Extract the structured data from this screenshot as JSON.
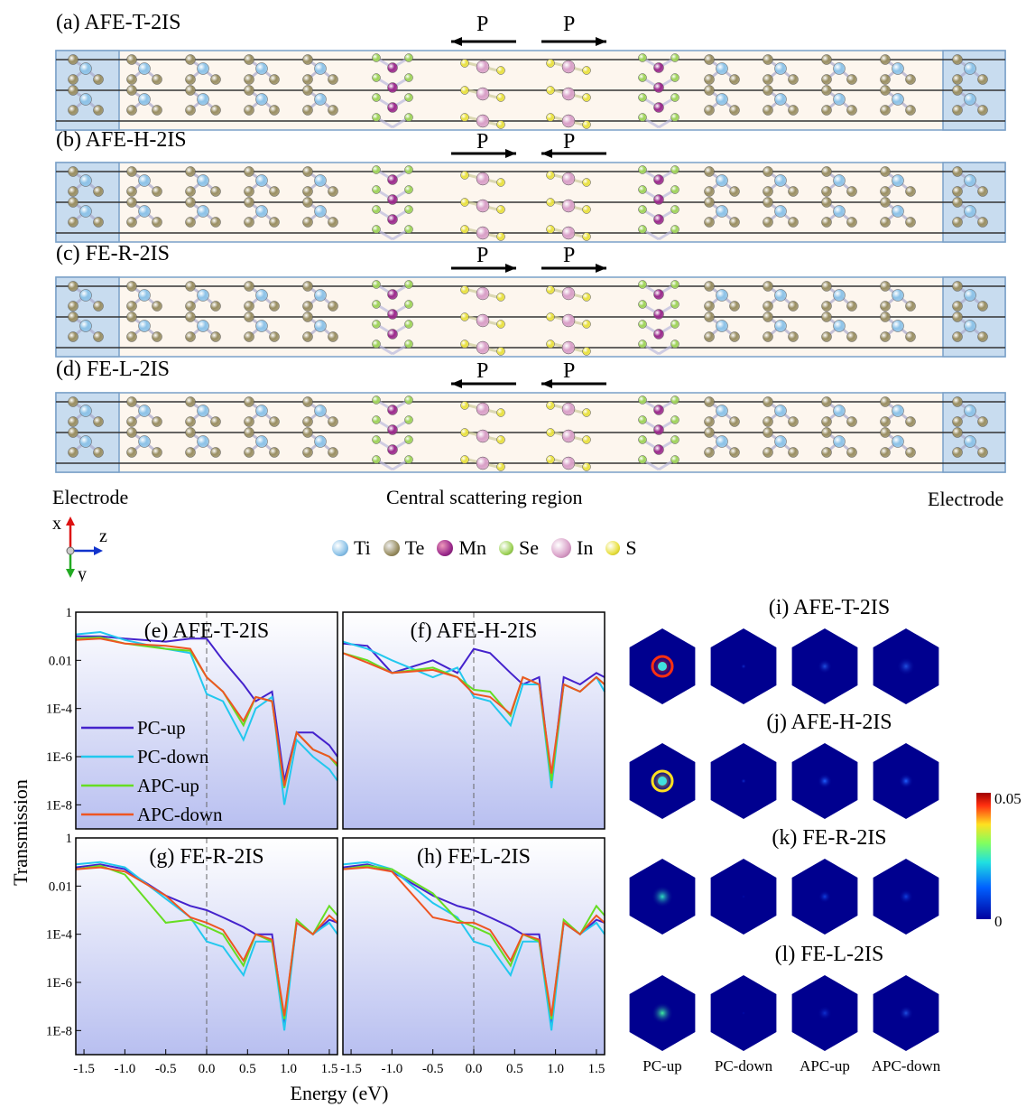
{
  "structure_panels": [
    {
      "label": "(a) AFE-T-2IS",
      "p_left": "P",
      "p_right": "P",
      "arrow_left": "left",
      "arrow_right": "right"
    },
    {
      "label": "(b) AFE-H-2IS",
      "p_left": "P",
      "p_right": "P",
      "arrow_left": "right",
      "arrow_right": "left"
    },
    {
      "label": "(c) FE-R-2IS",
      "p_left": "P",
      "p_right": "P",
      "arrow_left": "right",
      "arrow_right": "right"
    },
    {
      "label": "(d) FE-L-2IS",
      "p_left": "P",
      "p_right": "P",
      "arrow_left": "left",
      "arrow_right": "left"
    }
  ],
  "region_labels": {
    "left": "Electrode",
    "center": "Central scattering region",
    "right": "Electrode"
  },
  "axes_labels": {
    "x": "x",
    "y": "y",
    "z": "z"
  },
  "atom_legend": [
    {
      "name": "Ti",
      "color": "#8dc3e8"
    },
    {
      "name": "Te",
      "color": "#9a8f63"
    },
    {
      "name": "Mn",
      "color": "#9b2a8c"
    },
    {
      "name": "Se",
      "color": "#9fd35a"
    },
    {
      "name": "In",
      "color": "#d9a0c8"
    },
    {
      "name": "S",
      "color": "#e8e040"
    }
  ],
  "transmission": {
    "ylabel": "Transmission",
    "xlabel": "Energy (eV)",
    "yticks": [
      "1",
      "0.01",
      "1E-4",
      "1E-6",
      "1E-8"
    ],
    "xticks_left": [
      "-1.5",
      "-1.0",
      "-0.5",
      "0.0",
      "0.5",
      "1.0",
      "1.5"
    ],
    "xticks_right": [
      "-1.5",
      "-1.0",
      "-0.5",
      "0.0",
      "0.5",
      "1.0",
      "1.5"
    ],
    "legend": [
      "PC-up",
      "PC-down",
      "APC-up",
      "APC-down"
    ]
  },
  "kmaps": {
    "titles": [
      "(i) AFE-T-2IS",
      "(j) AFE-H-2IS",
      "(k) FE-R-2IS",
      "(l) FE-L-2IS"
    ],
    "columns": [
      "PC-up",
      "PC-down",
      "APC-up",
      "APC-down"
    ],
    "colorbar_max": "0.05",
    "colorbar_min": "0"
  },
  "chart_data": {
    "type": "line",
    "xlabel": "Energy (eV)",
    "ylabel": "Transmission",
    "yscale": "log",
    "xlim": [
      -1.6,
      1.6
    ],
    "ylim": [
      1e-09,
      1
    ],
    "x": [
      -1.6,
      -1.3,
      -1.0,
      -0.5,
      -0.2,
      0.0,
      0.2,
      0.45,
      0.6,
      0.8,
      0.95,
      1.1,
      1.3,
      1.5,
      1.6
    ],
    "panels": [
      {
        "title": "(e) AFE-T-2IS",
        "series": [
          {
            "name": "PC-up",
            "color": "#4422cc",
            "values": [
              0.1,
              0.1,
              0.08,
              0.06,
              0.08,
              0.08,
              0.01,
              0.001,
              0.0002,
              0.0005,
              1e-07,
              1e-05,
              1e-05,
              3e-06,
              1e-06
            ]
          },
          {
            "name": "PC-down",
            "color": "#22c8ee",
            "values": [
              0.12,
              0.15,
              0.07,
              0.03,
              0.02,
              0.0004,
              0.0002,
              5e-06,
              0.0001,
              0.0003,
              1e-08,
              5e-06,
              1e-06,
              3e-07,
              1e-07
            ]
          },
          {
            "name": "APC-up",
            "color": "#66dd22",
            "values": [
              0.08,
              0.09,
              0.05,
              0.03,
              0.025,
              0.002,
              0.0005,
              2e-05,
              0.0003,
              0.0002,
              5e-08,
              1e-05,
              2e-06,
              1e-06,
              4e-07
            ]
          },
          {
            "name": "APC-down",
            "color": "#ee5522",
            "values": [
              0.07,
              0.08,
              0.05,
              0.04,
              0.03,
              0.002,
              0.0005,
              3e-05,
              0.0003,
              0.0002,
              6e-08,
              1e-05,
              2e-06,
              1e-06,
              5e-07
            ]
          }
        ]
      },
      {
        "title": "(f) AFE-H-2IS",
        "series": [
          {
            "name": "PC-up",
            "color": "#4422cc",
            "values": [
              0.05,
              0.04,
              0.003,
              0.01,
              0.003,
              0.03,
              0.02,
              0.003,
              0.001,
              0.002,
              1e-07,
              0.002,
              0.001,
              0.003,
              0.002
            ]
          },
          {
            "name": "PC-down",
            "color": "#22c8ee",
            "values": [
              0.06,
              0.03,
              0.01,
              0.002,
              0.005,
              0.0003,
              0.0002,
              2e-05,
              0.001,
              0.001,
              5e-08,
              0.001,
              0.0005,
              0.002,
              0.0005
            ]
          },
          {
            "name": "APC-up",
            "color": "#66dd22",
            "values": [
              0.02,
              0.01,
              0.003,
              0.005,
              0.002,
              0.0006,
              0.0005,
              5e-05,
              0.002,
              0.001,
              1e-07,
              0.001,
              0.0005,
              0.002,
              0.001
            ]
          },
          {
            "name": "APC-down",
            "color": "#ee5522",
            "values": [
              0.02,
              0.008,
              0.003,
              0.004,
              0.002,
              0.0004,
              0.0003,
              6e-05,
              0.002,
              0.001,
              2e-07,
              0.001,
              0.0005,
              0.002,
              0.001
            ]
          }
        ]
      },
      {
        "title": "(g) FE-R-2IS",
        "series": [
          {
            "name": "PC-up",
            "color": "#4422cc",
            "values": [
              0.06,
              0.08,
              0.05,
              0.004,
              0.0015,
              0.001,
              0.0005,
              0.0002,
              0.0001,
              0.0001,
              2e-08,
              0.0003,
              0.0001,
              0.0004,
              0.0003
            ]
          },
          {
            "name": "PC-down",
            "color": "#22c8ee",
            "values": [
              0.08,
              0.1,
              0.06,
              0.003,
              0.0005,
              5e-05,
              3e-05,
              2e-06,
              5e-05,
              5e-05,
              1e-08,
              0.0003,
              0.0001,
              0.0003,
              0.0001
            ]
          },
          {
            "name": "APC-up",
            "color": "#66dd22",
            "values": [
              0.05,
              0.07,
              0.03,
              0.0003,
              0.0004,
              0.0002,
              0.0001,
              5e-06,
              0.0001,
              5e-05,
              3e-08,
              0.0004,
              0.0001,
              0.0015,
              0.0006
            ]
          },
          {
            "name": "APC-down",
            "color": "#ee5522",
            "values": [
              0.05,
              0.06,
              0.04,
              0.004,
              0.0005,
              0.0003,
              0.00015,
              8e-06,
              0.0001,
              6e-05,
              4e-08,
              0.0003,
              0.0001,
              0.0006,
              0.0003
            ]
          }
        ]
      },
      {
        "title": "(h) FE-L-2IS",
        "series": [
          {
            "name": "PC-up",
            "color": "#4422cc",
            "values": [
              0.06,
              0.08,
              0.04,
              0.004,
              0.0015,
              0.001,
              0.0005,
              0.0002,
              0.0001,
              0.0001,
              2e-08,
              0.0003,
              0.0001,
              0.0004,
              0.0003
            ]
          },
          {
            "name": "PC-down",
            "color": "#22c8ee",
            "values": [
              0.08,
              0.1,
              0.05,
              0.002,
              0.0005,
              5e-05,
              3e-05,
              2e-06,
              5e-05,
              5e-05,
              1e-08,
              0.0003,
              0.0001,
              0.0003,
              0.0001
            ]
          },
          {
            "name": "APC-up",
            "color": "#66dd22",
            "values": [
              0.05,
              0.07,
              0.05,
              0.005,
              0.0004,
              0.0002,
              0.0001,
              5e-06,
              0.0001,
              5e-05,
              3e-08,
              0.0004,
              0.0001,
              0.0015,
              0.0006
            ]
          },
          {
            "name": "APC-down",
            "color": "#ee5522",
            "values": [
              0.05,
              0.06,
              0.04,
              0.0005,
              0.0003,
              0.0003,
              0.00015,
              8e-06,
              0.0001,
              6e-05,
              4e-08,
              0.0003,
              0.0001,
              0.0006,
              0.0003
            ]
          }
        ]
      }
    ]
  }
}
